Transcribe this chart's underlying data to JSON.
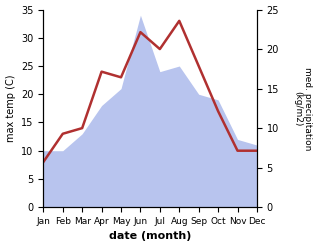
{
  "months": [
    "Jan",
    "Feb",
    "Mar",
    "Apr",
    "May",
    "Jun",
    "Jul",
    "Aug",
    "Sep",
    "Oct",
    "Nov",
    "Dec"
  ],
  "temperature": [
    8,
    13,
    14,
    24,
    23,
    31,
    28,
    33,
    25,
    17,
    10,
    10
  ],
  "precipitation": [
    10,
    10,
    13,
    18,
    21,
    34,
    24,
    25,
    20,
    19,
    12,
    11
  ],
  "temp_color": "#b03030",
  "precip_color": "#b8c4ee",
  "title": "",
  "xlabel": "date (month)",
  "ylabel_left": "max temp (C)",
  "ylabel_right": "med. precipitation\n(kg/m2)",
  "ylim_left": [
    0,
    35
  ],
  "ylim_right": [
    0,
    25
  ],
  "yticks_left": [
    0,
    5,
    10,
    15,
    20,
    25,
    30,
    35
  ],
  "yticks_right": [
    0,
    5,
    10,
    15,
    20,
    25
  ],
  "background_color": "#ffffff",
  "line_width": 1.8
}
